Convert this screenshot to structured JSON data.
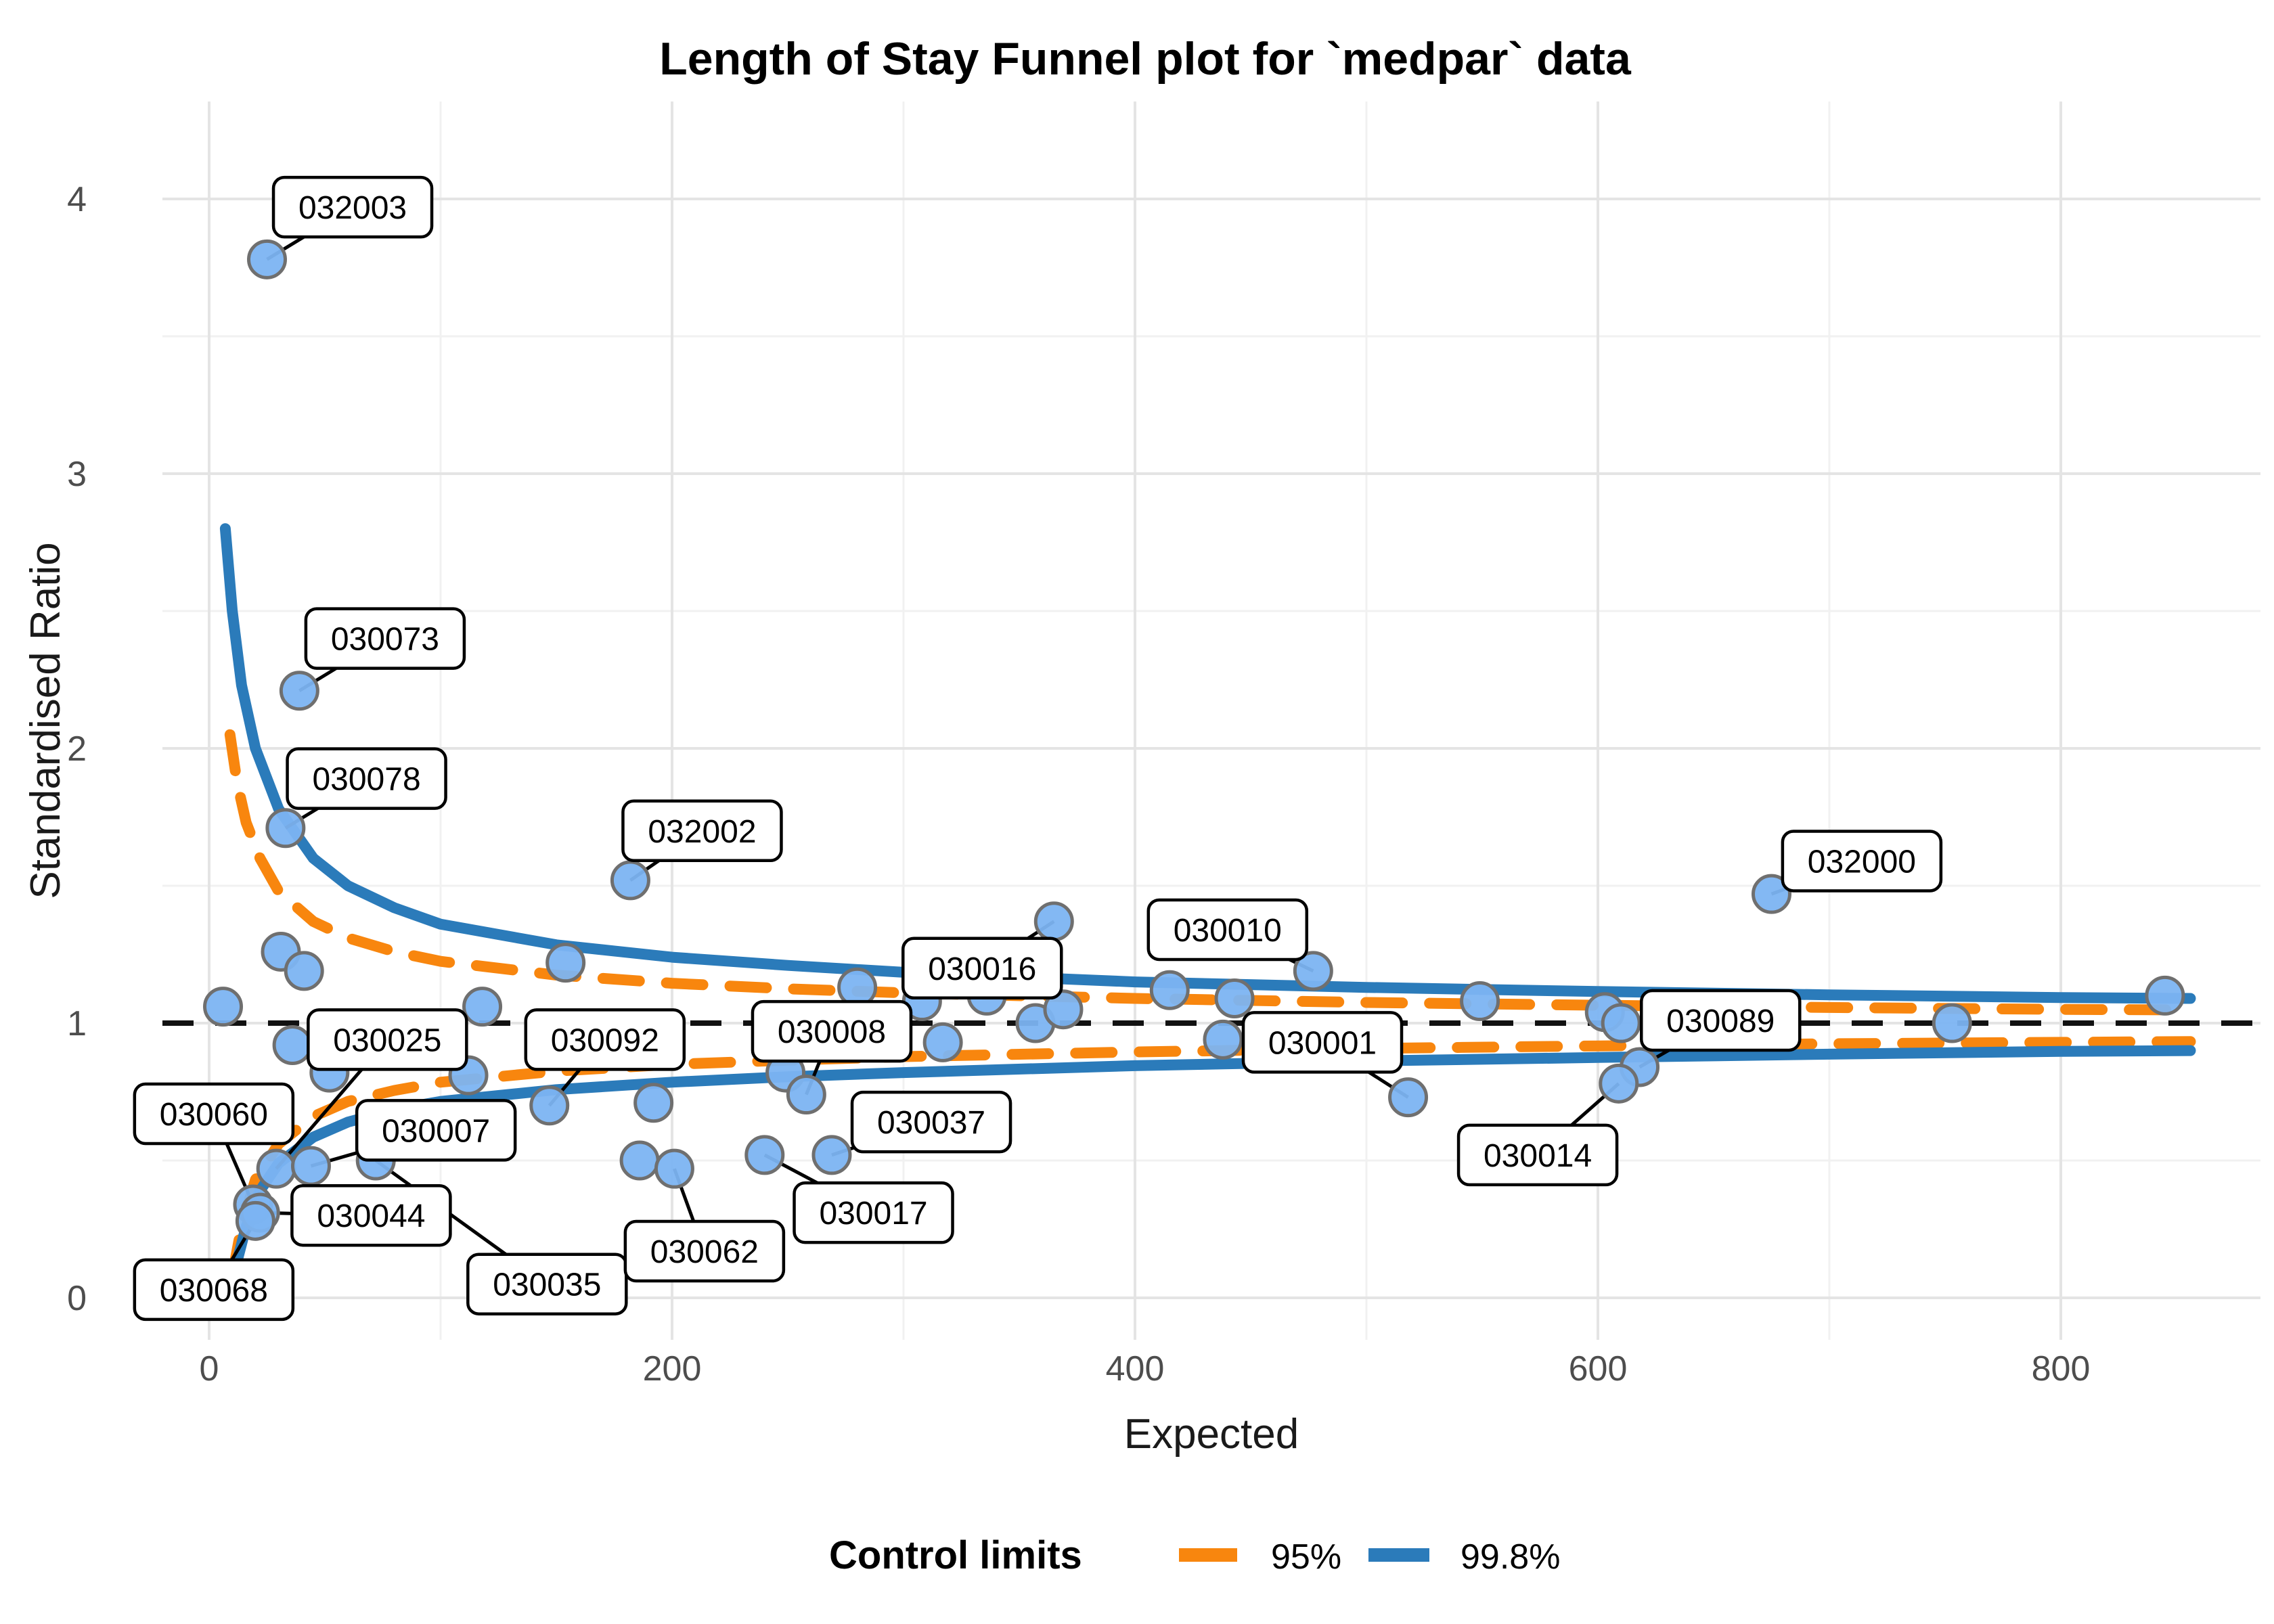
{
  "title": "Length of Stay Funnel plot for `medpar` data",
  "x_axis": {
    "label": "Expected",
    "ticks": [
      0,
      200,
      400,
      600,
      800
    ],
    "minor_ticks": [
      100,
      300,
      500,
      700
    ],
    "range": [
      -20,
      886
    ]
  },
  "y_axis": {
    "label": "Standardised Ratio",
    "ticks": [
      0,
      1,
      2,
      3,
      4
    ],
    "minor_ticks": [
      0.5,
      1.5,
      2.5,
      3.5
    ],
    "range": [
      -0.15,
      4.36
    ]
  },
  "legend": {
    "title": "Control limits",
    "items": [
      {
        "label": "95%",
        "color": "#F8860E",
        "style": "dashed"
      },
      {
        "label": "99.8%",
        "color": "#2B7BBA",
        "style": "solid"
      }
    ]
  },
  "colors": {
    "point_fill": "#7CB4F2",
    "point_stroke": "#6f6f6f",
    "limit_95": "#F8860E",
    "limit_998": "#2B7BBA",
    "reference": "#111111",
    "grid": "#e4e4e4",
    "tick_text": "#4d4d4d"
  },
  "chart_data": {
    "type": "scatter",
    "title": "Length of Stay Funnel plot for `medpar` data",
    "xlabel": "Expected",
    "ylabel": "Standardised Ratio",
    "xlim": [
      -20,
      886
    ],
    "ylim": [
      -0.15,
      4.36
    ],
    "grid": true,
    "legend_position": "bottom",
    "reference_line_y": 1,
    "points": [
      {
        "x": 6,
        "y": 1.06
      },
      {
        "x": 25,
        "y": 3.78,
        "label": "032003",
        "lx": 62,
        "ly": 3.97
      },
      {
        "x": 39,
        "y": 2.21,
        "label": "030073",
        "lx": 76,
        "ly": 2.4
      },
      {
        "x": 33,
        "y": 1.71,
        "label": "030078",
        "lx": 68,
        "ly": 1.89
      },
      {
        "x": 31,
        "y": 1.26
      },
      {
        "x": 41,
        "y": 1.19
      },
      {
        "x": 36,
        "y": 0.92
      },
      {
        "x": 52,
        "y": 0.82
      },
      {
        "x": 29,
        "y": 0.47,
        "label": "030025",
        "lx": 77,
        "ly": 0.94
      },
      {
        "x": 44,
        "y": 0.48,
        "label": "030007",
        "lx": 98,
        "ly": 0.61
      },
      {
        "x": 72,
        "y": 0.5,
        "label": "030035",
        "lx": 146,
        "ly": 0.05
      },
      {
        "x": 19,
        "y": 0.34,
        "label": "030060",
        "lx": 2,
        "ly": 0.67
      },
      {
        "x": 22,
        "y": 0.31,
        "label": "030044",
        "lx": 70,
        "ly": 0.3
      },
      {
        "x": 20,
        "y": 0.28,
        "label": "030068",
        "lx": 2,
        "ly": 0.03
      },
      {
        "x": 118,
        "y": 1.06
      },
      {
        "x": 154,
        "y": 1.22
      },
      {
        "x": 112,
        "y": 0.81
      },
      {
        "x": 147,
        "y": 0.7,
        "label": "030092",
        "lx": 171,
        "ly": 0.94
      },
      {
        "x": 182,
        "y": 1.52,
        "label": "032002",
        "lx": 213,
        "ly": 1.7
      },
      {
        "x": 192,
        "y": 0.71
      },
      {
        "x": 186,
        "y": 0.5
      },
      {
        "x": 201,
        "y": 0.47,
        "label": "030062",
        "lx": 214,
        "ly": 0.17
      },
      {
        "x": 240,
        "y": 0.52,
        "label": "030017",
        "lx": 287,
        "ly": 0.31
      },
      {
        "x": 269,
        "y": 0.52,
        "label": "030037",
        "lx": 312,
        "ly": 0.64
      },
      {
        "x": 249,
        "y": 0.82
      },
      {
        "x": 258,
        "y": 0.74,
        "label": "030008",
        "lx": 269,
        "ly": 0.97
      },
      {
        "x": 280,
        "y": 1.13
      },
      {
        "x": 308,
        "y": 1.08
      },
      {
        "x": 317,
        "y": 0.93
      },
      {
        "x": 336,
        "y": 1.1
      },
      {
        "x": 357,
        "y": 1.0
      },
      {
        "x": 369,
        "y": 1.05
      },
      {
        "x": 365,
        "y": 1.37,
        "label": "030016",
        "lx": 334,
        "ly": 1.2
      },
      {
        "x": 415,
        "y": 1.12
      },
      {
        "x": 438,
        "y": 0.94
      },
      {
        "x": 443,
        "y": 1.09
      },
      {
        "x": 477,
        "y": 1.19,
        "label": "030010",
        "lx": 440,
        "ly": 1.34
      },
      {
        "x": 518,
        "y": 0.73,
        "label": "030001",
        "lx": 481,
        "ly": 0.93
      },
      {
        "x": 549,
        "y": 1.08
      },
      {
        "x": 603,
        "y": 1.04
      },
      {
        "x": 610,
        "y": 1.0
      },
      {
        "x": 618,
        "y": 0.84,
        "label": "030089",
        "lx": 653,
        "ly": 1.01
      },
      {
        "x": 609,
        "y": 0.78,
        "label": "030014",
        "lx": 574,
        "ly": 0.52
      },
      {
        "x": 675,
        "y": 1.47,
        "label": "032000",
        "lx": 714,
        "ly": 1.59
      },
      {
        "x": 753,
        "y": 1.0
      },
      {
        "x": 845,
        "y": 1.1
      }
    ],
    "curves": {
      "limit95_upper": [
        [
          9,
          2.05
        ],
        [
          12,
          1.88
        ],
        [
          16,
          1.73
        ],
        [
          22,
          1.6
        ],
        [
          30,
          1.48
        ],
        [
          45,
          1.37
        ],
        [
          60,
          1.31
        ],
        [
          80,
          1.26
        ],
        [
          100,
          1.225
        ],
        [
          150,
          1.175
        ],
        [
          200,
          1.145
        ],
        [
          250,
          1.125
        ],
        [
          300,
          1.11
        ],
        [
          400,
          1.09
        ],
        [
          500,
          1.075
        ],
        [
          600,
          1.065
        ],
        [
          700,
          1.057
        ],
        [
          800,
          1.05
        ],
        [
          856,
          1.048
        ]
      ],
      "limit95_lower": [
        [
          10,
          0.08
        ],
        [
          14,
          0.26
        ],
        [
          20,
          0.43
        ],
        [
          30,
          0.56
        ],
        [
          45,
          0.66
        ],
        [
          60,
          0.715
        ],
        [
          80,
          0.755
        ],
        [
          100,
          0.785
        ],
        [
          150,
          0.825
        ],
        [
          200,
          0.85
        ],
        [
          250,
          0.865
        ],
        [
          300,
          0.878
        ],
        [
          400,
          0.895
        ],
        [
          500,
          0.908
        ],
        [
          600,
          0.917
        ],
        [
          700,
          0.925
        ],
        [
          800,
          0.93
        ],
        [
          856,
          0.933
        ]
      ],
      "limit998_upper": [
        [
          7,
          2.8
        ],
        [
          10,
          2.5
        ],
        [
          14,
          2.23
        ],
        [
          20,
          2.0
        ],
        [
          30,
          1.78
        ],
        [
          45,
          1.6
        ],
        [
          60,
          1.5
        ],
        [
          80,
          1.42
        ],
        [
          100,
          1.36
        ],
        [
          150,
          1.285
        ],
        [
          200,
          1.24
        ],
        [
          250,
          1.21
        ],
        [
          300,
          1.185
        ],
        [
          400,
          1.15
        ],
        [
          500,
          1.13
        ],
        [
          600,
          1.115
        ],
        [
          700,
          1.103
        ],
        [
          800,
          1.093
        ],
        [
          856,
          1.09
        ]
      ],
      "limit998_lower": [
        [
          9,
          0.02
        ],
        [
          12,
          0.13
        ],
        [
          16,
          0.26
        ],
        [
          22,
          0.39
        ],
        [
          30,
          0.49
        ],
        [
          45,
          0.585
        ],
        [
          60,
          0.64
        ],
        [
          80,
          0.685
        ],
        [
          100,
          0.715
        ],
        [
          150,
          0.758
        ],
        [
          200,
          0.785
        ],
        [
          250,
          0.805
        ],
        [
          300,
          0.82
        ],
        [
          400,
          0.845
        ],
        [
          500,
          0.862
        ],
        [
          600,
          0.875
        ],
        [
          700,
          0.887
        ],
        [
          800,
          0.897
        ],
        [
          856,
          0.9
        ]
      ]
    }
  }
}
